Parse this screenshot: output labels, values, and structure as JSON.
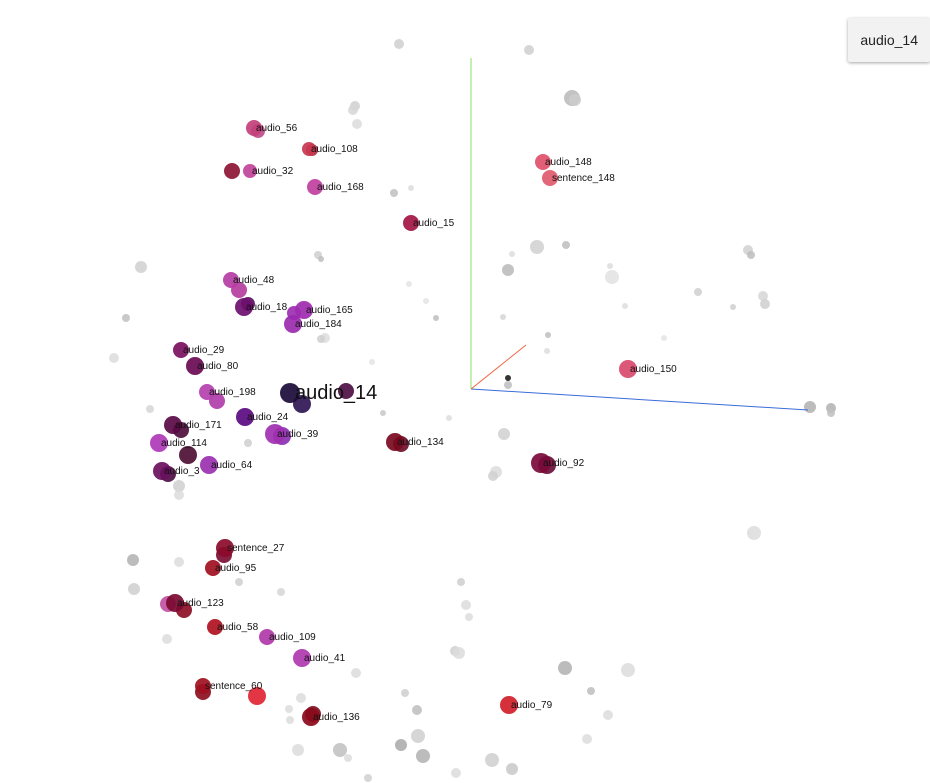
{
  "selected_chip": "audio_14",
  "chart_data": {
    "type": "scatter",
    "highlighted": "audio_14",
    "labeled_points": [
      {
        "label": "audio_56",
        "color": "#c2407a"
      },
      {
        "label": "audio_108",
        "color": "#c8374f"
      },
      {
        "label": "audio_32",
        "color": "#c1439a"
      },
      {
        "label": "audio_168",
        "color": "#c040a0"
      },
      {
        "label": "audio_15",
        "color": "#a31545"
      },
      {
        "label": "audio_148",
        "color": "#e0506a"
      },
      {
        "label": "sentence_148",
        "color": "#e05a6c"
      },
      {
        "label": "audio_48",
        "color": "#b63da4"
      },
      {
        "label": "audio_18",
        "color": "#6e0f6e"
      },
      {
        "label": "audio_165",
        "color": "#a02ab0"
      },
      {
        "label": "audio_184",
        "color": "#9a2aae"
      },
      {
        "label": "audio_29",
        "color": "#7a1060"
      },
      {
        "label": "audio_80",
        "color": "#6a0a55"
      },
      {
        "label": "audio_198",
        "color": "#b440b0"
      },
      {
        "label": "audio_14",
        "color": "#1a0a3a"
      },
      {
        "label": "audio_150",
        "color": "#d84a6c"
      },
      {
        "label": "audio_171",
        "color": "#5a0a45"
      },
      {
        "label": "audio_24",
        "color": "#5a0a80"
      },
      {
        "label": "audio_39",
        "color": "#a030b0"
      },
      {
        "label": "audio_134",
        "color": "#7a0a20"
      },
      {
        "label": "audio_114",
        "color": "#b038b8"
      },
      {
        "label": "audio_92",
        "color": "#7a0a3a"
      },
      {
        "label": "audio_3",
        "color": "#6a1060"
      },
      {
        "label": "audio_64",
        "color": "#9a30b0"
      },
      {
        "label": "sentence_27",
        "color": "#8a0a2a"
      },
      {
        "label": "audio_95",
        "color": "#a01020"
      },
      {
        "label": "audio_123",
        "color": "#7a0a30"
      },
      {
        "label": "audio_58",
        "color": "#b01020"
      },
      {
        "label": "audio_109",
        "color": "#b038a8"
      },
      {
        "label": "audio_41",
        "color": "#b038b0"
      },
      {
        "label": "sentence_60",
        "color": "#a01020"
      },
      {
        "label": "audio_136",
        "color": "#8a0a1a"
      },
      {
        "label": "audio_79",
        "color": "#d0202a"
      }
    ]
  }
}
